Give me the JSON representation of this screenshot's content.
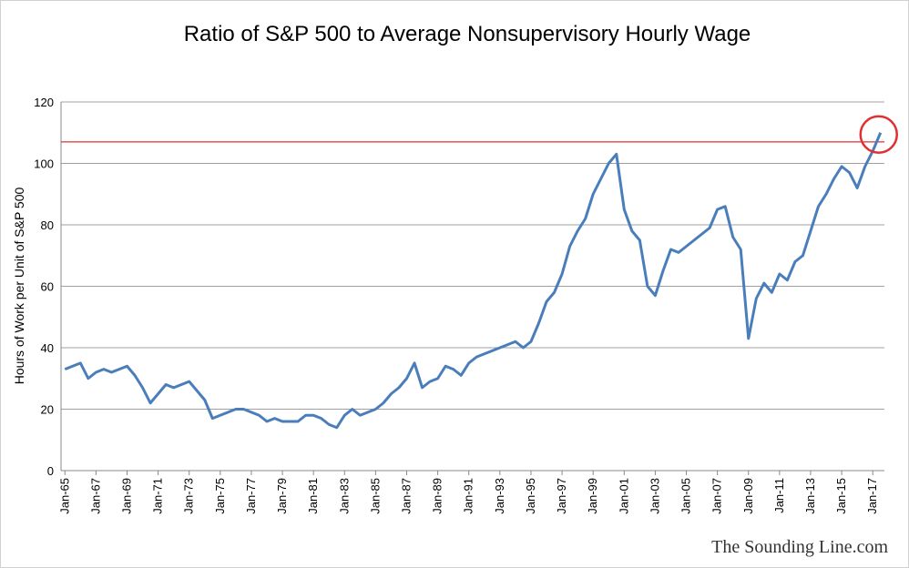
{
  "chart_data": {
    "type": "line",
    "title": "Ratio of S&P 500 to Average Nonsupervisory Hourly Wage",
    "y_label": "Hours of Work per Unit of S&P 500",
    "watermark": "The Sounding Line.com",
    "categories": [
      "Jan-65",
      null,
      null,
      null,
      "Jan-67",
      null,
      null,
      null,
      "Jan-69",
      null,
      null,
      null,
      "Jan-71",
      null,
      null,
      null,
      "Jan-73",
      null,
      null,
      null,
      "Jan-75",
      null,
      null,
      null,
      "Jan-77",
      null,
      null,
      null,
      "Jan-79",
      null,
      null,
      null,
      "Jan-81",
      null,
      null,
      null,
      "Jan-83",
      null,
      null,
      null,
      "Jan-85",
      null,
      null,
      null,
      "Jan-87",
      null,
      null,
      null,
      "Jan-89",
      null,
      null,
      null,
      "Jan-91",
      null,
      null,
      null,
      "Jan-93",
      null,
      null,
      null,
      "Jan-95",
      null,
      null,
      null,
      "Jan-97",
      null,
      null,
      null,
      "Jan-99",
      null,
      null,
      null,
      "Jan-01",
      null,
      null,
      null,
      "Jan-03",
      null,
      null,
      null,
      "Jan-05",
      null,
      null,
      null,
      "Jan-07",
      null,
      null,
      null,
      "Jan-09",
      null,
      null,
      null,
      "Jan-11",
      null,
      null,
      null,
      "Jan-13",
      null,
      null,
      null,
      "Jan-15",
      null,
      null,
      null,
      "Jan-17",
      null
    ],
    "series": [
      {
        "name": "Ratio",
        "color": "#4a7ebb",
        "values": [
          33,
          34,
          35,
          30,
          32,
          33,
          32,
          33,
          34,
          31,
          27,
          22,
          25,
          28,
          27,
          28,
          29,
          26,
          23,
          17,
          18,
          19,
          20,
          20,
          19,
          18,
          16,
          17,
          16,
          16,
          16,
          18,
          18,
          17,
          15,
          14,
          18,
          20,
          18,
          19,
          20,
          22,
          25,
          27,
          30,
          35,
          27,
          29,
          30,
          34,
          33,
          31,
          35,
          37,
          38,
          39,
          40,
          41,
          42,
          40,
          42,
          48,
          55,
          58,
          64,
          73,
          78,
          82,
          90,
          95,
          100,
          103,
          85,
          78,
          75,
          60,
          57,
          65,
          72,
          71,
          73,
          75,
          77,
          79,
          85,
          86,
          76,
          72,
          43,
          56,
          61,
          58,
          64,
          62,
          68,
          70,
          78,
          86,
          90,
          95,
          99,
          97,
          92,
          99,
          104,
          110
        ]
      }
    ],
    "reference_line": 107,
    "reference_color": "#e03030",
    "ylim": [
      0,
      120
    ],
    "yticks": [
      0,
      20,
      40,
      60,
      80,
      100,
      120
    ],
    "grid": true
  }
}
